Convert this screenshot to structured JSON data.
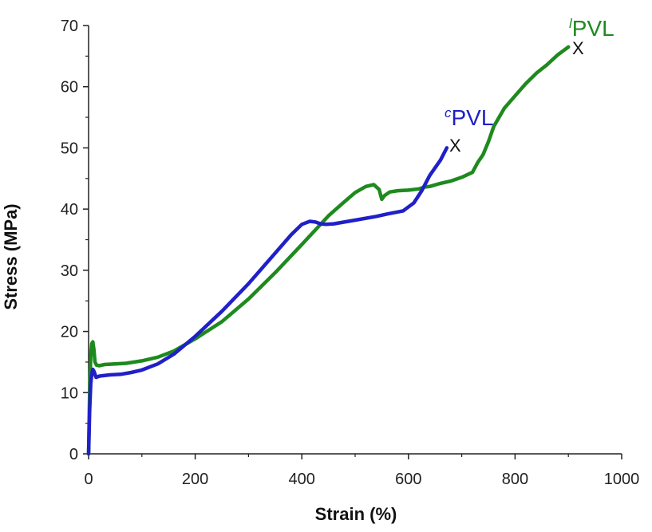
{
  "chart_data": {
    "type": "line",
    "xlabel": "Strain (%)",
    "ylabel": "Stress (MPa)",
    "xlim": [
      0,
      1000
    ],
    "ylim": [
      0,
      70
    ],
    "xticks": [
      "0",
      "200",
      "400",
      "600",
      "800",
      "1000"
    ],
    "yticks": [
      "0",
      "10",
      "20",
      "30",
      "40",
      "50",
      "60",
      "70"
    ],
    "grid": false,
    "series": [
      {
        "name_prefix": "l",
        "name_main": "PVL",
        "color": "#1e8a1e",
        "break_mark": "X",
        "x": [
          0,
          2,
          4,
          6,
          8,
          10,
          12,
          15,
          20,
          30,
          50,
          70,
          100,
          130,
          160,
          200,
          250,
          300,
          350,
          400,
          450,
          480,
          500,
          520,
          535,
          545,
          550,
          555,
          565,
          580,
          600,
          620,
          630,
          640,
          660,
          680,
          700,
          720,
          730,
          740,
          750,
          760,
          780,
          800,
          820,
          840,
          860,
          880,
          900
        ],
        "y": [
          0,
          10,
          16,
          18,
          18.3,
          17,
          15,
          14.5,
          14.4,
          14.6,
          14.7,
          14.8,
          15.2,
          15.8,
          16.8,
          18.8,
          21.6,
          25.3,
          29.6,
          34.2,
          38.9,
          41.2,
          42.7,
          43.7,
          44,
          43.2,
          41.6,
          42.2,
          42.8,
          43,
          43.1,
          43.3,
          43.6,
          43.7,
          44.2,
          44.6,
          45.2,
          46,
          47.6,
          48.9,
          51,
          53.5,
          56.5,
          58.5,
          60.5,
          62.2,
          63.6,
          65.2,
          66.5
        ]
      },
      {
        "name_prefix": "c",
        "name_main": "PVL",
        "color": "#2020c8",
        "break_mark": "X",
        "x": [
          0,
          2,
          4,
          6,
          8,
          10,
          14,
          20,
          40,
          60,
          80,
          100,
          130,
          160,
          200,
          250,
          300,
          350,
          380,
          400,
          415,
          425,
          435,
          445,
          460,
          500,
          540,
          560,
          590,
          610,
          625,
          640,
          660,
          672
        ],
        "y": [
          0,
          7,
          11.5,
          13,
          13.8,
          13.5,
          12.5,
          12.7,
          12.9,
          13,
          13.3,
          13.7,
          14.7,
          16.3,
          19.2,
          23.3,
          27.8,
          32.8,
          35.8,
          37.5,
          38,
          37.9,
          37.6,
          37.5,
          37.6,
          38.2,
          38.8,
          39.2,
          39.7,
          41,
          43,
          45.5,
          48,
          50
        ]
      }
    ]
  }
}
